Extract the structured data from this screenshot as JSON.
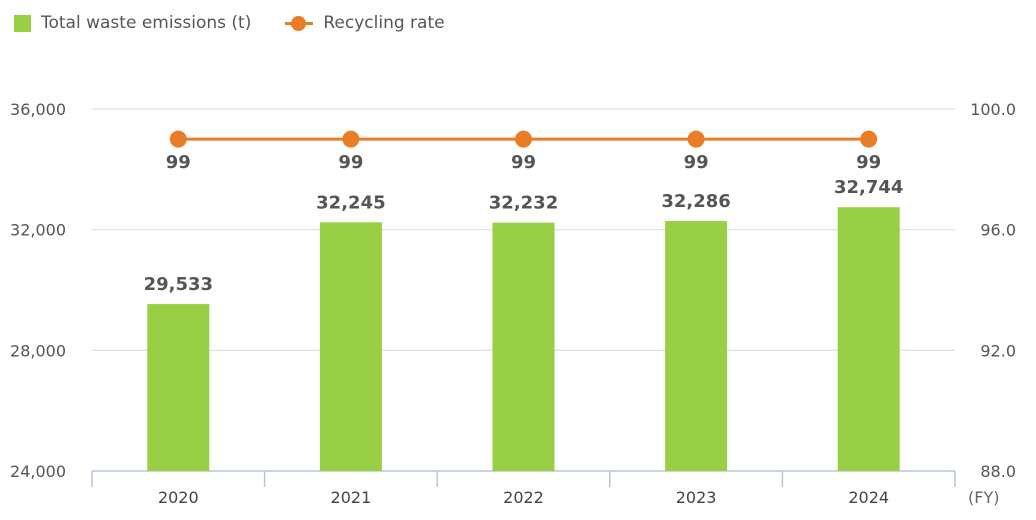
{
  "chart_data": {
    "type": "bar",
    "categories": [
      "2020",
      "2021",
      "2022",
      "2023",
      "2024"
    ],
    "series": [
      {
        "name": "Total waste emissions (t)",
        "type": "bar",
        "axis": "left",
        "values": [
          29533,
          32245,
          32232,
          32286,
          32744
        ],
        "labels": [
          "29,533",
          "32,245",
          "32,232",
          "32,286",
          "32,744"
        ],
        "color": "#99cf44"
      },
      {
        "name": "Recycling rate",
        "type": "line",
        "axis": "right",
        "values": [
          99,
          99,
          99,
          99,
          99
        ],
        "labels": [
          "99",
          "99",
          "99",
          "99",
          "99"
        ],
        "color": "#e87d26"
      }
    ],
    "y_left": {
      "range": [
        24000,
        36000
      ],
      "ticks": [
        "24,000",
        "28,000",
        "32,000",
        "36,000"
      ]
    },
    "y_right": {
      "range": [
        88.0,
        100.0
      ],
      "ticks": [
        "88.0",
        "92.0",
        "96.0",
        "100.0"
      ]
    },
    "x_unit": "(FY)",
    "grid": true,
    "legend_position": "top-left"
  }
}
